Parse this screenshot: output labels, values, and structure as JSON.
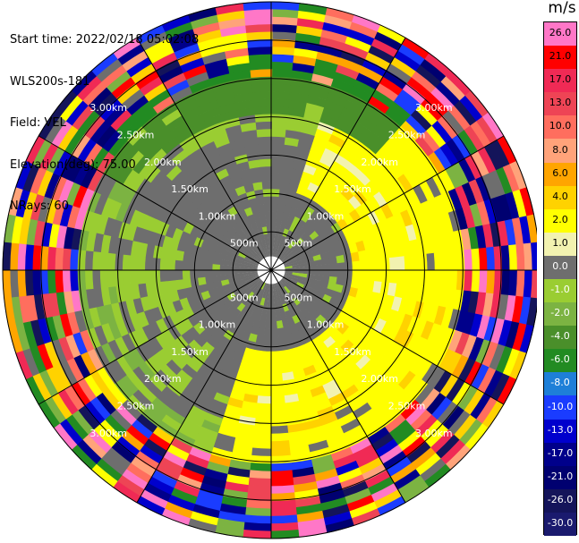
{
  "header": {
    "lines": [
      "Start time: 2022/02/18 05:02:08",
      "WLS200s-181",
      "Field: VEL",
      "Elevation(deg): 75.00",
      "NRays: 60"
    ]
  },
  "colorbar": {
    "title": "m/s",
    "levels": [
      {
        "label": "26.0",
        "color": "#ff77c7"
      },
      {
        "label": "21.0",
        "color": "#ff0000"
      },
      {
        "label": "17.0",
        "color": "#f02a55"
      },
      {
        "label": "13.0",
        "color": "#ee4455"
      },
      {
        "label": "10.0",
        "color": "#ff6e5e"
      },
      {
        "label": "8.0",
        "color": "#ffa37a"
      },
      {
        "label": "6.0",
        "color": "#ffa500"
      },
      {
        "label": "4.0",
        "color": "#ffd200"
      },
      {
        "label": "2.0",
        "color": "#ffff00"
      },
      {
        "label": "1.0",
        "color": "#f2f2b0"
      },
      {
        "label": "0.0",
        "color": "#6e6e6e"
      },
      {
        "label": "-1.0",
        "color": "#9acd32"
      },
      {
        "label": "-2.0",
        "color": "#7cb342"
      },
      {
        "label": "-4.0",
        "color": "#4a8f2a"
      },
      {
        "label": "-6.0",
        "color": "#228b22"
      },
      {
        "label": "-8.0",
        "color": "#1e7fd8"
      },
      {
        "label": "-10.0",
        "color": "#1a3cff"
      },
      {
        "label": "-13.0",
        "color": "#0000cd"
      },
      {
        "label": "-17.0",
        "color": "#00008b"
      },
      {
        "label": "-21.0",
        "color": "#000070"
      },
      {
        "label": "-26.0",
        "color": "#14145a"
      },
      {
        "label": "-30.0",
        "color": "#1a1a6e"
      }
    ]
  },
  "chart_data": {
    "type": "heatmap",
    "projection": "polar",
    "field": "VEL",
    "unit": "m/s",
    "n_rays": 60,
    "range_rings_km": [
      0.5,
      1.0,
      1.5,
      2.0,
      2.5,
      3.0
    ],
    "ring_labels": [
      "500m",
      "1.00km",
      "1.50km",
      "2.00km",
      "2.50km",
      "3.00km"
    ],
    "spoke_angles_deg": [
      0,
      30,
      60,
      90,
      120,
      150
    ],
    "max_range_km": 3.5,
    "dominant_regions": [
      {
        "range_km": [
          0.2,
          2.2
        ],
        "sector": "west/north",
        "value_class": "0.0"
      },
      {
        "range_km": [
          2.2,
          2.6
        ],
        "sector": "north",
        "value_class": "-4.0"
      },
      {
        "range_km": [
          1.0,
          2.2
        ],
        "sector": "east/south",
        "value_class": "2.0"
      },
      {
        "range_km": [
          2.6,
          3.5
        ],
        "sector": "all",
        "value_class": "mixed"
      }
    ]
  }
}
